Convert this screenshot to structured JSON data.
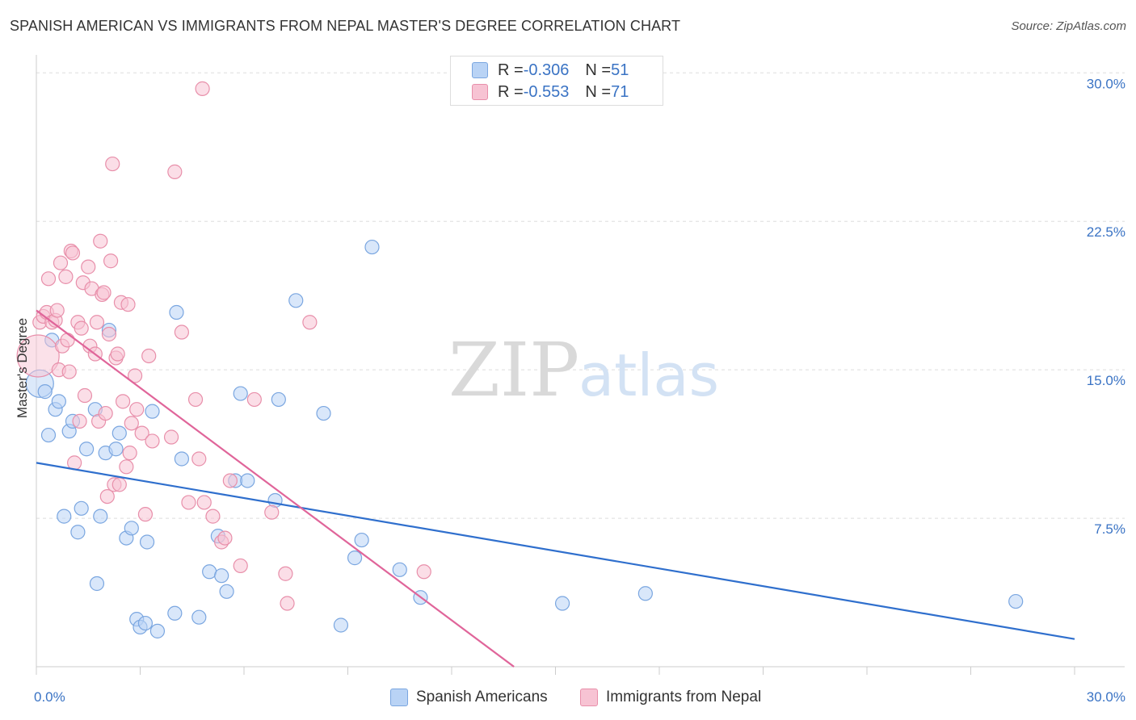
{
  "title": "SPANISH AMERICAN VS IMMIGRANTS FROM NEPAL MASTER'S DEGREE CORRELATION CHART",
  "source": "Source: ZipAtlas.com",
  "watermark": {
    "zip": "ZIP",
    "atlas": "atlas"
  },
  "legend": {
    "rows": [
      {
        "r_label": "R = ",
        "r_value": "-0.306",
        "n_label": "N = ",
        "n_value": "51"
      },
      {
        "r_label": "R = ",
        "r_value": "-0.553",
        "n_label": "N = ",
        "n_value": "71"
      }
    ]
  },
  "colors": {
    "blue_fill": "#b9d3f5",
    "blue_stroke": "#7aa6e0",
    "blue_line": "#2f6fcd",
    "pink_fill": "#f7c3d3",
    "pink_stroke": "#e88faa",
    "pink_line": "#e0659a",
    "tick_text": "#3a73c4",
    "grid": "#dddddd"
  },
  "chart_data": {
    "type": "scatter",
    "title": "SPANISH AMERICAN VS IMMIGRANTS FROM NEPAL MASTER'S DEGREE CORRELATION CHART",
    "ylabel": "Master's Degree",
    "xlabel": "",
    "xlim": [
      0,
      30
    ],
    "ylim": [
      0,
      30.5
    ],
    "x_tick_labels": [
      "0.0%",
      "30.0%"
    ],
    "y_ticks": [
      7.5,
      15.0,
      22.5,
      30.0
    ],
    "y_tick_labels": [
      "7.5%",
      "15.0%",
      "22.5%",
      "30.0%"
    ],
    "grid": true,
    "legend_position": "top-center",
    "series": [
      {
        "name": "Spanish Americans",
        "color": "#b9d3f5",
        "r": -0.306,
        "n": 51,
        "trendline": {
          "x": [
            0,
            30
          ],
          "y": [
            10.3,
            1.4
          ]
        },
        "points": [
          [
            0.1,
            14.3
          ],
          [
            0.25,
            13.9
          ],
          [
            0.35,
            11.7
          ],
          [
            0.45,
            16.5
          ],
          [
            0.55,
            13.0
          ],
          [
            0.65,
            13.4
          ],
          [
            0.8,
            7.6
          ],
          [
            0.95,
            11.9
          ],
          [
            1.05,
            12.4
          ],
          [
            1.2,
            6.8
          ],
          [
            1.3,
            8.0
          ],
          [
            1.45,
            11.0
          ],
          [
            1.7,
            13.0
          ],
          [
            1.75,
            4.2
          ],
          [
            1.85,
            7.6
          ],
          [
            2.0,
            10.8
          ],
          [
            2.1,
            17.0
          ],
          [
            2.3,
            11.0
          ],
          [
            2.4,
            11.8
          ],
          [
            2.6,
            6.5
          ],
          [
            2.75,
            7.0
          ],
          [
            2.9,
            2.4
          ],
          [
            3.0,
            2.0
          ],
          [
            3.15,
            2.2
          ],
          [
            3.2,
            6.3
          ],
          [
            3.35,
            12.9
          ],
          [
            3.5,
            1.8
          ],
          [
            4.0,
            2.7
          ],
          [
            4.05,
            17.9
          ],
          [
            4.2,
            10.5
          ],
          [
            4.7,
            2.5
          ],
          [
            5.0,
            4.8
          ],
          [
            5.25,
            6.6
          ],
          [
            5.35,
            4.6
          ],
          [
            5.5,
            3.8
          ],
          [
            5.75,
            9.4
          ],
          [
            5.9,
            13.8
          ],
          [
            6.1,
            9.4
          ],
          [
            6.9,
            8.4
          ],
          [
            7.0,
            13.5
          ],
          [
            7.5,
            18.5
          ],
          [
            8.3,
            12.8
          ],
          [
            8.8,
            2.1
          ],
          [
            9.2,
            5.5
          ],
          [
            9.4,
            6.4
          ],
          [
            9.7,
            21.2
          ],
          [
            10.5,
            4.9
          ],
          [
            11.1,
            3.5
          ],
          [
            15.2,
            3.2
          ],
          [
            17.6,
            3.7
          ],
          [
            28.3,
            3.3
          ]
        ]
      },
      {
        "name": "Immigrants from Nepal",
        "color": "#f7c3d3",
        "r": -0.553,
        "n": 71,
        "trendline": {
          "x": [
            0,
            13.8
          ],
          "y": [
            18.0,
            0.0
          ]
        },
        "points": [
          [
            0.05,
            15.7
          ],
          [
            0.1,
            17.4
          ],
          [
            0.2,
            17.7
          ],
          [
            0.3,
            17.9
          ],
          [
            0.35,
            19.6
          ],
          [
            0.45,
            17.4
          ],
          [
            0.55,
            17.5
          ],
          [
            0.6,
            18.0
          ],
          [
            0.65,
            15.0
          ],
          [
            0.7,
            20.4
          ],
          [
            0.75,
            16.2
          ],
          [
            0.85,
            19.7
          ],
          [
            0.9,
            16.5
          ],
          [
            0.95,
            14.9
          ],
          [
            1.0,
            21.0
          ],
          [
            1.05,
            20.9
          ],
          [
            1.1,
            10.3
          ],
          [
            1.2,
            17.4
          ],
          [
            1.25,
            12.4
          ],
          [
            1.3,
            17.1
          ],
          [
            1.35,
            19.4
          ],
          [
            1.4,
            13.7
          ],
          [
            1.5,
            20.2
          ],
          [
            1.55,
            16.2
          ],
          [
            1.6,
            19.1
          ],
          [
            1.7,
            15.8
          ],
          [
            1.75,
            17.4
          ],
          [
            1.8,
            12.4
          ],
          [
            1.85,
            21.5
          ],
          [
            1.9,
            18.8
          ],
          [
            1.95,
            18.9
          ],
          [
            2.0,
            12.8
          ],
          [
            2.05,
            8.6
          ],
          [
            2.1,
            16.8
          ],
          [
            2.15,
            20.5
          ],
          [
            2.2,
            25.4
          ],
          [
            2.25,
            9.2
          ],
          [
            2.3,
            15.6
          ],
          [
            2.35,
            15.8
          ],
          [
            2.4,
            9.2
          ],
          [
            2.45,
            18.4
          ],
          [
            2.5,
            13.4
          ],
          [
            2.6,
            10.1
          ],
          [
            2.65,
            18.3
          ],
          [
            2.7,
            10.8
          ],
          [
            2.75,
            12.3
          ],
          [
            2.85,
            14.7
          ],
          [
            2.9,
            13.0
          ],
          [
            3.05,
            11.8
          ],
          [
            3.15,
            7.7
          ],
          [
            3.25,
            15.7
          ],
          [
            3.35,
            11.4
          ],
          [
            3.9,
            11.6
          ],
          [
            4.0,
            25.0
          ],
          [
            4.2,
            16.9
          ],
          [
            4.4,
            8.3
          ],
          [
            4.6,
            13.5
          ],
          [
            4.7,
            10.5
          ],
          [
            4.8,
            29.2
          ],
          [
            4.85,
            8.3
          ],
          [
            5.1,
            7.6
          ],
          [
            5.35,
            6.3
          ],
          [
            5.45,
            6.5
          ],
          [
            5.6,
            9.4
          ],
          [
            5.9,
            5.1
          ],
          [
            6.3,
            13.5
          ],
          [
            6.8,
            7.8
          ],
          [
            7.2,
            4.7
          ],
          [
            7.25,
            3.2
          ],
          [
            7.9,
            17.4
          ],
          [
            11.2,
            4.8
          ]
        ]
      }
    ]
  },
  "bottom_legend": [
    "Spanish Americans",
    "Immigrants from Nepal"
  ]
}
